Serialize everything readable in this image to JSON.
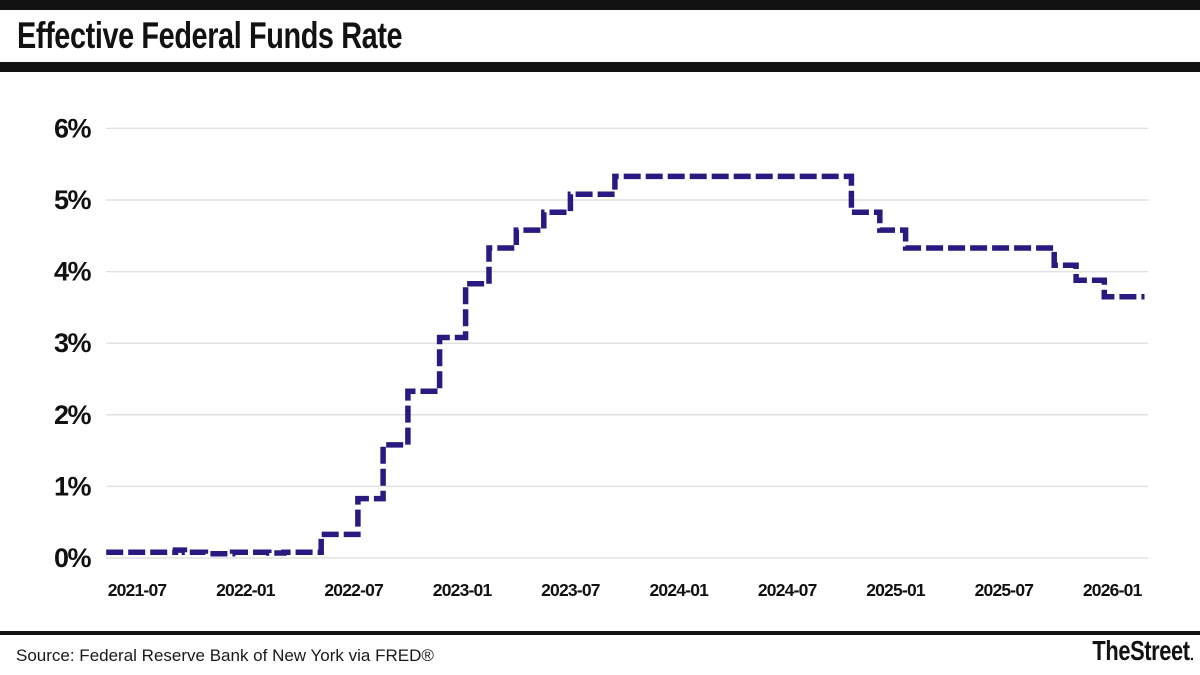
{
  "header": {
    "title": "Effective Federal Funds Rate"
  },
  "footer": {
    "source": "Source: Federal Reserve Bank of New York via FRED®",
    "brand": "TheStreet",
    "brand_suffix": "."
  },
  "chart_data": {
    "type": "line",
    "style": "step",
    "line_style": "dashed",
    "line_color": "#291a82",
    "grid_color": "#e2e2e2",
    "grid": true,
    "legend": false,
    "title": "Effective Federal Funds Rate",
    "xlabel": "",
    "ylabel": "",
    "ylim": [
      0,
      6
    ],
    "y_unit": "%",
    "y_ticks": [
      "0%",
      "1%",
      "2%",
      "3%",
      "4%",
      "5%",
      "6%"
    ],
    "x_ticks": [
      "2021-07",
      "2022-01",
      "2022-07",
      "2023-01",
      "2023-07",
      "2024-01",
      "2024-07",
      "2025-01",
      "2025-07",
      "2026-01"
    ],
    "series": [
      {
        "name": "Effective Federal Funds Rate (%)",
        "points": [
          {
            "date": "2021-05-10",
            "value": 0.08
          },
          {
            "date": "2021-09-05",
            "value": 0.11
          },
          {
            "date": "2021-09-20",
            "value": 0.08
          },
          {
            "date": "2021-10-25",
            "value": 0.06
          },
          {
            "date": "2021-12-10",
            "value": 0.08
          },
          {
            "date": "2022-02-10",
            "value": 0.07
          },
          {
            "date": "2022-03-05",
            "value": 0.08
          },
          {
            "date": "2022-05-07",
            "value": 0.33
          },
          {
            "date": "2022-07-08",
            "value": 0.83
          },
          {
            "date": "2022-08-20",
            "value": 1.58
          },
          {
            "date": "2022-10-01",
            "value": 2.33
          },
          {
            "date": "2022-11-24",
            "value": 3.08
          },
          {
            "date": "2023-01-07",
            "value": 3.83
          },
          {
            "date": "2023-02-16",
            "value": 4.33
          },
          {
            "date": "2023-04-01",
            "value": 4.58
          },
          {
            "date": "2023-05-17",
            "value": 4.83
          },
          {
            "date": "2023-07-01",
            "value": 5.08
          },
          {
            "date": "2023-09-15",
            "value": 5.33
          },
          {
            "date": "2024-10-18",
            "value": 4.83
          },
          {
            "date": "2024-12-05",
            "value": 4.58
          },
          {
            "date": "2025-01-18",
            "value": 4.33
          },
          {
            "date": "2025-09-25",
            "value": 4.09
          },
          {
            "date": "2025-11-01",
            "value": 3.88
          },
          {
            "date": "2025-12-18",
            "value": 3.65
          }
        ],
        "end_date": "2026-02-25"
      }
    ]
  }
}
